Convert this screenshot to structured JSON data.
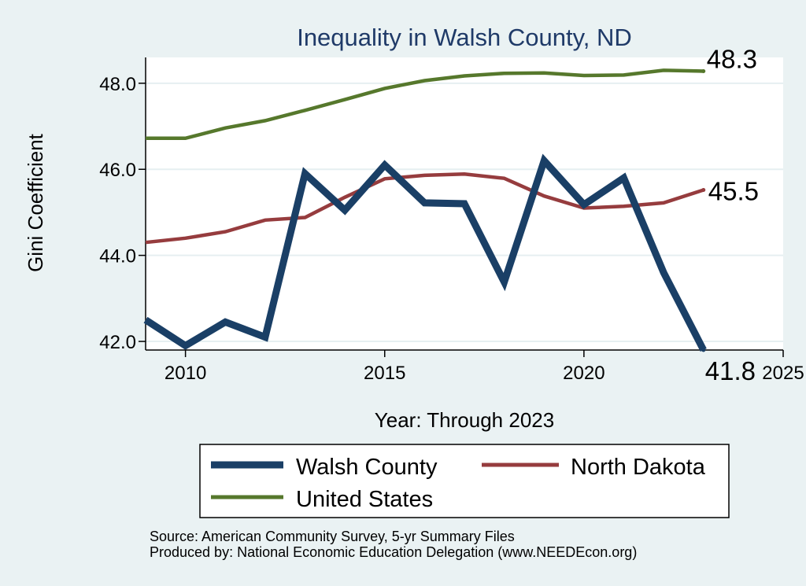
{
  "chart_data": {
    "type": "line",
    "title": "Inequality in Walsh County, ND",
    "xlabel": "Year: Through 2023",
    "ylabel": "Gini Coefficient",
    "xlim": [
      2009,
      2025
    ],
    "ylim": [
      41.8,
      48.6
    ],
    "xticks": [
      2010,
      2015,
      2020,
      2025
    ],
    "yticks": [
      42.0,
      44.0,
      46.0,
      48.0
    ],
    "ytick_labels": [
      "42.0",
      "44.0",
      "46.0",
      "48.0"
    ],
    "grid": true,
    "x": [
      2009,
      2010,
      2011,
      2012,
      2013,
      2014,
      2015,
      2016,
      2017,
      2018,
      2019,
      2020,
      2021,
      2022,
      2023
    ],
    "series": [
      {
        "name": "Walsh County",
        "color": "#1a3f66",
        "values": [
          42.5,
          41.9,
          42.45,
          42.1,
          45.9,
          45.05,
          46.1,
          45.22,
          45.2,
          43.38,
          46.2,
          45.18,
          45.8,
          43.6,
          41.8
        ],
        "end_label": "41.8"
      },
      {
        "name": "North Dakota",
        "color": "#963c3e",
        "values": [
          44.3,
          44.4,
          44.55,
          44.82,
          44.88,
          45.35,
          45.78,
          45.86,
          45.89,
          45.79,
          45.38,
          45.1,
          45.14,
          45.22,
          45.52
        ],
        "end_label": "45.5"
      },
      {
        "name": "United States",
        "color": "#56782c",
        "values": [
          46.72,
          46.72,
          46.96,
          47.13,
          47.37,
          47.62,
          47.88,
          48.06,
          48.17,
          48.23,
          48.24,
          48.18,
          48.19,
          48.3,
          48.28
        ],
        "end_label": "48.3"
      }
    ],
    "legend": {
      "position": "bottom",
      "entries": [
        "Walsh County",
        "North Dakota",
        "United States"
      ]
    },
    "source_lines": [
      "Source: American Community Survey, 5-yr Summary Files",
      "Produced by: National Economic Education Delegation (www.NEEDEcon.org)"
    ]
  }
}
